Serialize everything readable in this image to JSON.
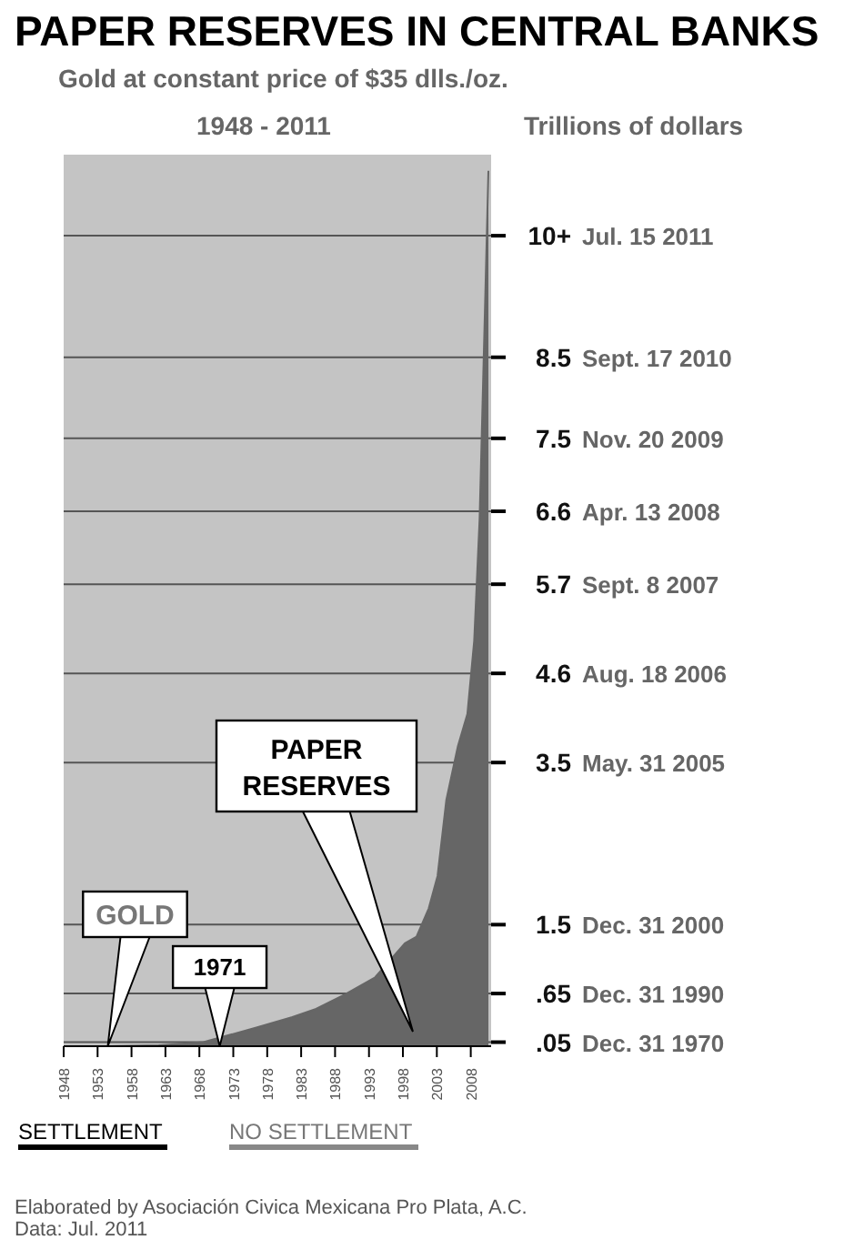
{
  "chart_data": {
    "type": "area",
    "title": "PAPER RESERVES IN CENTRAL BANKS",
    "subtitle": "Gold at constant price of $35 dlls./oz.",
    "ylabel": "Trillions of dollars",
    "x": [
      1948,
      1955,
      1962,
      1968.6,
      1976.4,
      1981.7,
      1985.2,
      1989.5,
      1993.9,
      1998.3,
      2000,
      2001.8,
      2003.1,
      2004.4,
      2006.1,
      2007.5,
      2008.5,
      2009.3,
      2010,
      2010.6
    ],
    "series": [
      {
        "color": "#666666",
        "values": [
          0,
          0,
          0.01,
          0.05,
          0.23,
          0.36,
          0.46,
          0.64,
          0.85,
          1.27,
          1.35,
          1.7,
          2.1,
          3.04,
          3.7,
          4.1,
          5.0,
          6.5,
          8.8,
          10.8
        ]
      }
    ],
    "xlim": [
      1948,
      2011
    ],
    "xticks": [
      1948,
      1953,
      1958,
      1963,
      1968,
      1973,
      1978,
      1983,
      1988,
      1993,
      1998,
      2003,
      2008
    ],
    "ylim": [
      0,
      11
    ],
    "yticks": [
      {
        "value": 10,
        "label": "10+"
      },
      8.5,
      7.5,
      6.6,
      5.7,
      4.6,
      3.5,
      1.5,
      {
        "value": 0.65,
        "label": ".65"
      },
      {
        "value": 0.05,
        "label": ".05"
      }
    ],
    "grid": "y",
    "annotations": [
      "1948 - 2011",
      "Jul. 15 2011",
      "Sept. 17 2010",
      "Nov. 20 2009",
      "Apr. 13 2008",
      "Sept. 8 2007",
      "Aug. 18 2006",
      "May. 31 2005",
      "Dec. 31 2000",
      "Dec. 31 1990",
      "Dec. 31 1970",
      "PAPER RESERVES",
      {
        "text": "GOLD",
        "x": 1954.5,
        "y": 0
      },
      {
        "text": "1971",
        "x": 1971,
        "y": 0
      },
      "SETTLEMENT",
      "NO SETTLEMENT",
      "Elaborated by Asociación Civica Mexicana Pro Plata, A.C.",
      "Data: Jul. 2011"
    ]
  }
}
